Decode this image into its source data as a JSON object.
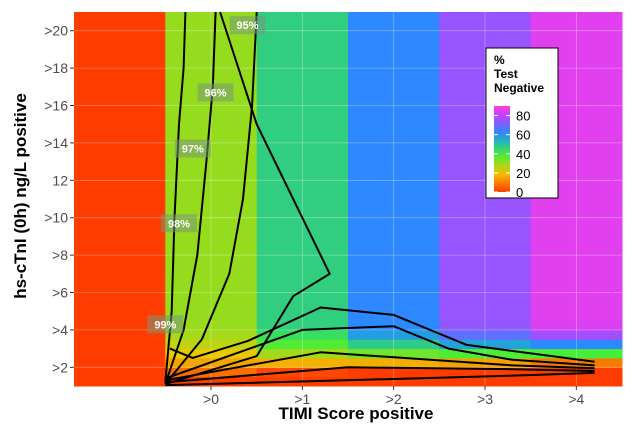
{
  "chart_data": {
    "type": "heatmap",
    "xlabel": "TIMI Score positive",
    "ylabel": "hs-cTnI (0h) ng/L positive",
    "x_categories": [
      "",
      ">0",
      ">1",
      ">2",
      ">3",
      ">4"
    ],
    "x_ticks": [
      ">0",
      ">1",
      ">2",
      ">3",
      ">4"
    ],
    "y_ticks": [
      ">2",
      ">4",
      ">6",
      ">8",
      ">10",
      "12",
      ">14",
      ">16",
      ">18",
      ">20"
    ],
    "y_tick_values": [
      2,
      4,
      6,
      8,
      10,
      12,
      14,
      16,
      18,
      20
    ],
    "ylim": [
      1,
      21
    ],
    "color_scale": {
      "stops": [
        {
          "value": 0,
          "color": "#ff3c00"
        },
        {
          "value": 20,
          "color": "#f0c800"
        },
        {
          "value": 40,
          "color": "#3cf03c"
        },
        {
          "value": 60,
          "color": "#1e90ff"
        },
        {
          "value": 80,
          "color": "#c040ff"
        }
      ],
      "limits": [
        0,
        90
      ]
    },
    "legend": {
      "title_lines": [
        "%",
        "Test",
        "Negative"
      ],
      "ticks": [
        80,
        60,
        40,
        20,
        0
      ],
      "placement": "top-right"
    },
    "column_baseline_percent": [
      0,
      30,
      47,
      62,
      75,
      85
    ],
    "row_zero_below_x": 0.5,
    "contours": [
      {
        "label": "95%",
        "label_at": [
          0.4,
          20.3
        ],
        "x": [
          -0.5,
          -0.43,
          -0.4,
          -0.35,
          -0.3,
          -0.28
        ],
        "y": [
          1.2,
          5,
          10,
          15,
          18,
          21
        ]
      },
      {
        "label": "96%",
        "label_at": [
          0.05,
          16.7
        ],
        "x": [
          -0.5,
          -0.3,
          -0.15,
          -0.05,
          0.02,
          0.05
        ],
        "y": [
          1.1,
          4,
          8,
          13,
          17,
          21
        ]
      },
      {
        "label": "97%",
        "label_at": [
          -0.2,
          13.7
        ],
        "x": [
          -0.5,
          -0.1,
          0.2,
          0.35,
          0.45,
          0.5
        ],
        "y": [
          1.1,
          3.5,
          7,
          11,
          16,
          21
        ]
      },
      {
        "label": "98%",
        "label_at": [
          -0.35,
          9.7
        ],
        "x": [
          -0.5,
          0.5,
          0.9,
          1.3,
          1.0,
          0.5,
          0.1
        ],
        "y": [
          1.1,
          2.6,
          5.8,
          7,
          10,
          15,
          21
        ]
      },
      {
        "label": "99%",
        "label_at": [
          -0.5,
          4.3
        ],
        "x": [
          -0.5,
          2.2,
          3.6,
          4.2
        ],
        "y": [
          1.05,
          1.4,
          1.6,
          1.7
        ],
        "extra": [
          {
            "x": [
              -0.5,
              1.5,
              3.3,
              4.2
            ],
            "y": [
              1.2,
              2.0,
              1.9,
              1.8
            ]
          },
          {
            "x": [
              -0.5,
              1.2,
              2.4,
              3.3,
              4.2
            ],
            "y": [
              1.3,
              2.8,
              2.4,
              2.1,
              1.95
            ]
          },
          {
            "x": [
              -0.5,
              1.0,
              2.0,
              2.6,
              3.3,
              4.2
            ],
            "y": [
              1.4,
              4.0,
              4.2,
              3.0,
              2.4,
              2.1
            ]
          },
          {
            "x": [
              -0.45,
              -0.2,
              0.4,
              1.2,
              2.0,
              2.8,
              4.2
            ],
            "y": [
              3,
              2.5,
              3.4,
              5.2,
              4.8,
              3.2,
              2.3
            ]
          }
        ]
      }
    ]
  }
}
